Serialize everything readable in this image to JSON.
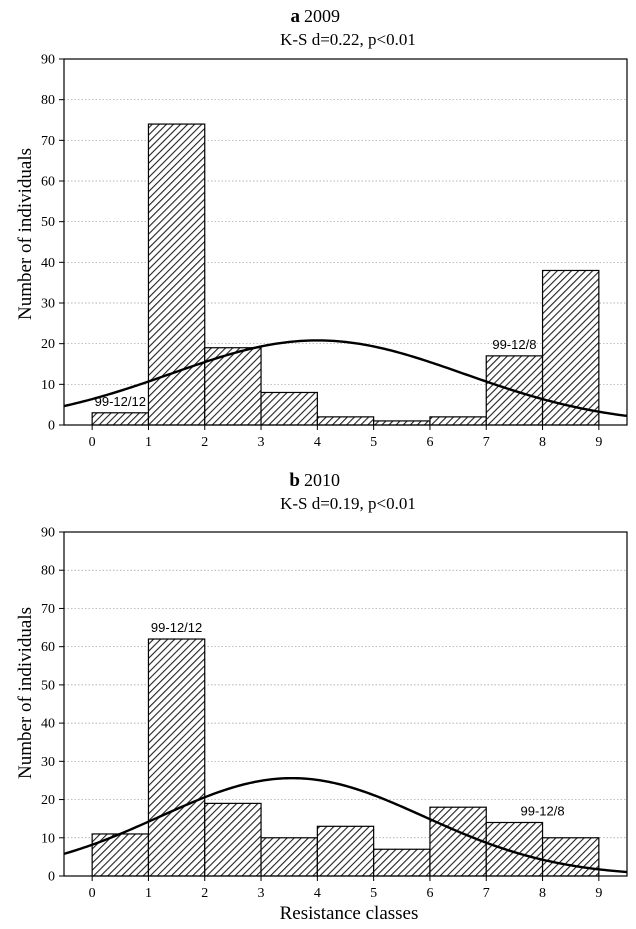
{
  "chart_data": [
    {
      "type": "bar",
      "panel": "a",
      "title": "2009",
      "subtitle": "K-S d=0.22, p<0.01",
      "xlabel": "",
      "ylabel": "Number of individuals",
      "xticks": [
        0,
        1,
        2,
        3,
        4,
        5,
        6,
        7,
        8,
        9
      ],
      "yticks": [
        0,
        10,
        20,
        30,
        40,
        50,
        60,
        70,
        80,
        90
      ],
      "xlim": [
        -0.5,
        9.5
      ],
      "ylim": [
        0,
        90
      ],
      "bins": [
        {
          "x0": 0,
          "x1": 1,
          "value": 3
        },
        {
          "x0": 1,
          "x1": 2,
          "value": 74
        },
        {
          "x0": 2,
          "x1": 3,
          "value": 19
        },
        {
          "x0": 3,
          "x1": 4,
          "value": 8
        },
        {
          "x0": 4,
          "x1": 5,
          "value": 2
        },
        {
          "x0": 5,
          "x1": 6,
          "value": 1
        },
        {
          "x0": 6,
          "x1": 7,
          "value": 2
        },
        {
          "x0": 7,
          "x1": 8,
          "value": 17
        },
        {
          "x0": 8,
          "x1": 9,
          "value": 38
        }
      ],
      "normal_curve": {
        "mean": 4.0,
        "sd": 2.6,
        "peak": 20.8
      },
      "annotations": [
        {
          "text": "99-12/12",
          "x": 0.5,
          "y": 3
        },
        {
          "text": "99-12/8",
          "x": 7.5,
          "y": 17
        }
      ],
      "grid": true
    },
    {
      "type": "bar",
      "panel": "b",
      "title": "2010",
      "subtitle": "K-S d=0.19, p<0.01",
      "xlabel": "Resistance classes",
      "ylabel": "Number of individuals",
      "xticks": [
        0,
        1,
        2,
        3,
        4,
        5,
        6,
        7,
        8,
        9
      ],
      "yticks": [
        0,
        10,
        20,
        30,
        40,
        50,
        60,
        70,
        80,
        90
      ],
      "xlim": [
        -0.5,
        9.5
      ],
      "ylim": [
        0,
        90
      ],
      "bins": [
        {
          "x0": 0,
          "x1": 1,
          "value": 11
        },
        {
          "x0": 1,
          "x1": 2,
          "value": 62
        },
        {
          "x0": 2,
          "x1": 3,
          "value": 19
        },
        {
          "x0": 3,
          "x1": 4,
          "value": 10
        },
        {
          "x0": 4,
          "x1": 5,
          "value": 13
        },
        {
          "x0": 5,
          "x1": 6,
          "value": 7
        },
        {
          "x0": 6,
          "x1": 7,
          "value": 18
        },
        {
          "x0": 7,
          "x1": 8,
          "value": 14
        },
        {
          "x0": 8,
          "x1": 9,
          "value": 10
        }
      ],
      "normal_curve": {
        "mean": 3.55,
        "sd": 2.35,
        "peak": 25.6
      },
      "annotations": [
        {
          "text": "99-12/12",
          "x": 1.5,
          "y": 62
        },
        {
          "text": "99-12/8",
          "x": 8.0,
          "y": 14
        }
      ],
      "grid": true
    }
  ]
}
